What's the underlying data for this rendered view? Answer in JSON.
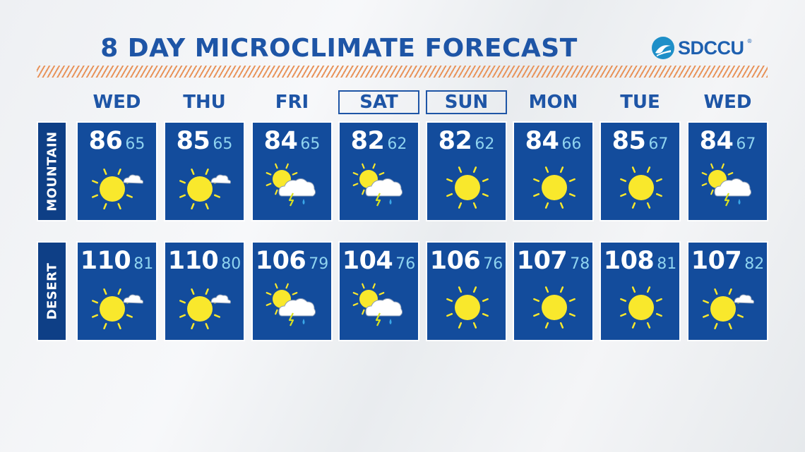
{
  "title": "8 DAY MICROCLIMATE FORECAST",
  "sponsor": "SDCCU",
  "sponsor_mark": "®",
  "colors": {
    "title": "#1e55a6",
    "cell": "#134c9c",
    "label": "#0e3f86",
    "low": "#8fd3ef",
    "sun": "#f9e82c",
    "stripe": "#e8935a"
  },
  "days": [
    {
      "label": "WED",
      "boxed": false
    },
    {
      "label": "THU",
      "boxed": false
    },
    {
      "label": "FRI",
      "boxed": false
    },
    {
      "label": "SAT",
      "boxed": true
    },
    {
      "label": "SUN",
      "boxed": true
    },
    {
      "label": "MON",
      "boxed": false
    },
    {
      "label": "TUE",
      "boxed": false
    },
    {
      "label": "WED",
      "boxed": false
    }
  ],
  "rows": [
    {
      "label": "MOUNTAIN",
      "cells": [
        {
          "high": "86",
          "low": "65",
          "icon": "partly-sunny-icon"
        },
        {
          "high": "85",
          "low": "65",
          "icon": "partly-sunny-icon"
        },
        {
          "high": "84",
          "low": "65",
          "icon": "thunderstorm-sun-icon"
        },
        {
          "high": "82",
          "low": "62",
          "icon": "thunderstorm-sun-icon"
        },
        {
          "high": "82",
          "low": "62",
          "icon": "sunny-icon"
        },
        {
          "high": "84",
          "low": "66",
          "icon": "sunny-icon"
        },
        {
          "high": "85",
          "low": "67",
          "icon": "sunny-icon"
        },
        {
          "high": "84",
          "low": "67",
          "icon": "thunderstorm-sun-icon"
        }
      ]
    },
    {
      "label": "DESERT",
      "cells": [
        {
          "high": "110",
          "low": "81",
          "icon": "partly-sunny-icon"
        },
        {
          "high": "110",
          "low": "80",
          "icon": "partly-sunny-icon"
        },
        {
          "high": "106",
          "low": "79",
          "icon": "thunderstorm-sun-icon"
        },
        {
          "high": "104",
          "low": "76",
          "icon": "thunderstorm-sun-icon"
        },
        {
          "high": "106",
          "low": "76",
          "icon": "sunny-icon"
        },
        {
          "high": "107",
          "low": "78",
          "icon": "sunny-icon"
        },
        {
          "high": "108",
          "low": "81",
          "icon": "sunny-icon"
        },
        {
          "high": "107",
          "low": "82",
          "icon": "partly-sunny-icon"
        }
      ]
    }
  ]
}
